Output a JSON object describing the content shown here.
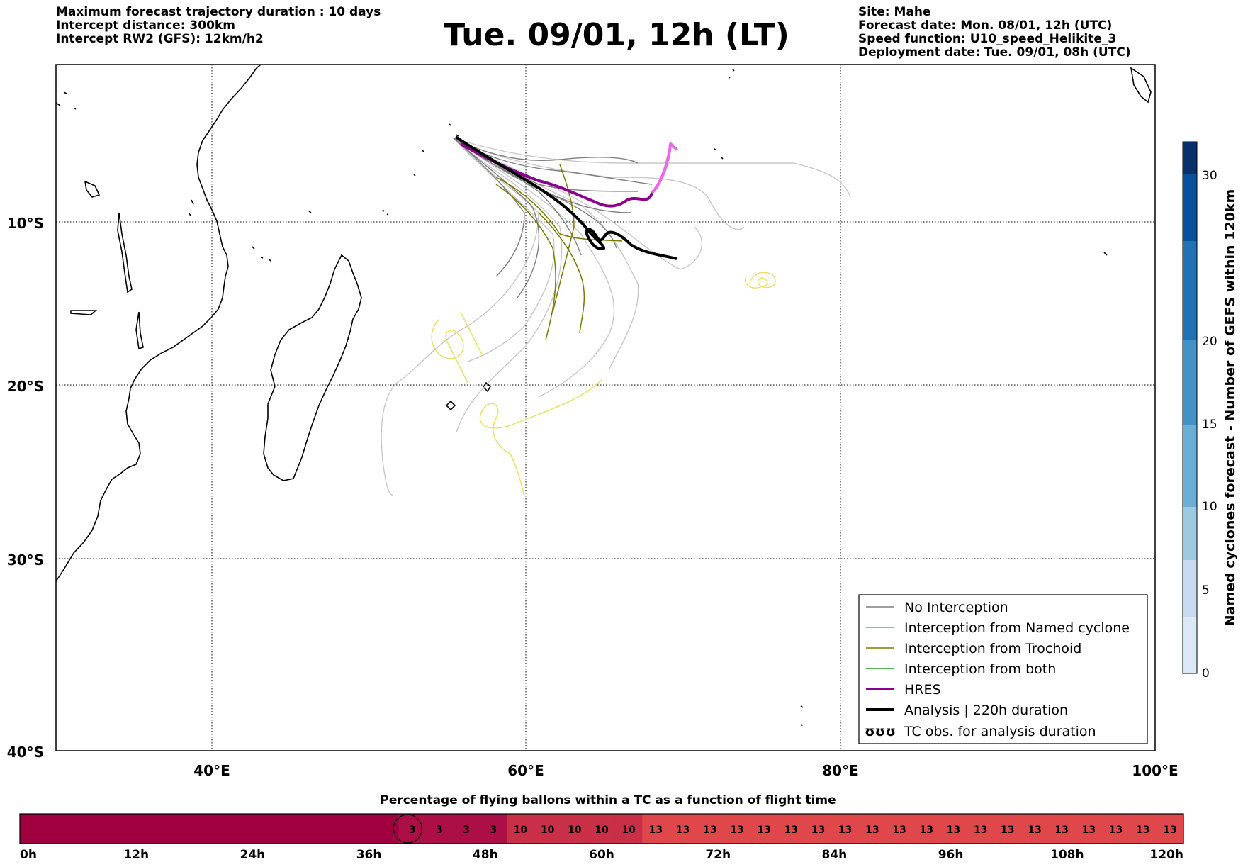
{
  "header": {
    "left_lines": [
      "Maximum forecast trajectory duration : 10 days",
      "Intercept distance: 300km",
      "Intercept RW2 (GFS):  12km/h2"
    ],
    "title": "Tue. 09/01, 12h (LT)",
    "right_lines": [
      "Site: Mahe",
      "Forecast date: Mon. 08/01, 12h (UTC)",
      "Speed function: U10_speed_Helikite_3",
      "Deployment date: Tue. 09/01, 08h (UTC)"
    ]
  },
  "map": {
    "lon_range": [
      30,
      100
    ],
    "lat_range": [
      -40,
      2
    ],
    "lat_labels": [
      "10°S",
      "20°S",
      "30°S",
      "40°S"
    ],
    "lon_labels": [
      "40°E",
      "60°E",
      "80°E",
      "100°E"
    ],
    "colors": {
      "no_interception": "#808080",
      "named_cyclone": "#ff6a1a",
      "trochoid": "#7a7a00",
      "both": "#1a9a1a",
      "hres": "#8b008b",
      "hres_late": "#ee66ee",
      "analysis": "#000000",
      "tc_obs": "#e8e060",
      "light_tracks": "#c8c8c8"
    }
  },
  "legend": {
    "items": [
      "No Interception",
      "Interception from Named cyclone",
      "Interception from Trochoid",
      "Interception from both",
      "HRES",
      "Analysis | 220h duration",
      "TC obs. for analysis duration"
    ],
    "tc_symbol": "ʊʊʊ"
  },
  "colorbar": {
    "label": "Named cyclones forecast - Number of GEFS within 120km",
    "ticks": [
      "0",
      "5",
      "10",
      "15",
      "20",
      "30"
    ],
    "colors": [
      "#dbe9f6",
      "#c6dbef",
      "#9ecae1",
      "#6baed6",
      "#4292c6",
      "#2171b5",
      "#08519c",
      "#08306b"
    ]
  },
  "timebar": {
    "title": "Percentage of flying ballons within a TC as a function of flight time",
    "tick_labels": [
      "0h",
      "12h",
      "24h",
      "36h",
      "48h",
      "60h",
      "72h",
      "84h",
      "96h",
      "108h",
      "120h"
    ],
    "segments": [
      {
        "hours": 3,
        "value": "",
        "color": "#a0003f"
      },
      {
        "hours": 3,
        "value": "",
        "color": "#a0003f"
      },
      {
        "hours": 3,
        "value": "",
        "color": "#a0003f"
      },
      {
        "hours": 3,
        "value": "",
        "color": "#a0003f"
      },
      {
        "hours": 3,
        "value": "",
        "color": "#a0003f"
      },
      {
        "hours": 3,
        "value": "",
        "color": "#a0003f"
      },
      {
        "hours": 3,
        "value": "",
        "color": "#a0003f"
      },
      {
        "hours": 3,
        "value": "",
        "color": "#a0003f"
      },
      {
        "hours": 3,
        "value": "",
        "color": "#a0003f"
      },
      {
        "hours": 3,
        "value": "",
        "color": "#a0003f"
      },
      {
        "hours": 3,
        "value": "",
        "color": "#a0003f"
      },
      {
        "hours": 3,
        "value": "",
        "color": "#a0003f"
      },
      {
        "hours": 3,
        "value": "",
        "color": "#a0003f"
      },
      {
        "hours": 3,
        "value": "",
        "color": "#a0003f"
      },
      {
        "hours": 3,
        "value": "3",
        "color": "#ac0f45"
      },
      {
        "hours": 3,
        "value": "3",
        "color": "#ac0f45"
      },
      {
        "hours": 3,
        "value": "3",
        "color": "#ac0f45"
      },
      {
        "hours": 3,
        "value": "3",
        "color": "#ac0f45"
      },
      {
        "hours": 3,
        "value": "10",
        "color": "#c92f47"
      },
      {
        "hours": 3,
        "value": "10",
        "color": "#c92f47"
      },
      {
        "hours": 3,
        "value": "10",
        "color": "#c92f47"
      },
      {
        "hours": 3,
        "value": "10",
        "color": "#c92f47"
      },
      {
        "hours": 3,
        "value": "10",
        "color": "#c92f47"
      },
      {
        "hours": 3,
        "value": "13",
        "color": "#e0474b"
      },
      {
        "hours": 3,
        "value": "13",
        "color": "#e0474b"
      },
      {
        "hours": 3,
        "value": "13",
        "color": "#e0474b"
      },
      {
        "hours": 3,
        "value": "13",
        "color": "#e0474b"
      },
      {
        "hours": 3,
        "value": "13",
        "color": "#e0474b"
      },
      {
        "hours": 3,
        "value": "13",
        "color": "#e0474b"
      },
      {
        "hours": 3,
        "value": "13",
        "color": "#e0474b"
      },
      {
        "hours": 3,
        "value": "13",
        "color": "#e0474b"
      },
      {
        "hours": 3,
        "value": "13",
        "color": "#e0474b"
      },
      {
        "hours": 3,
        "value": "13",
        "color": "#e0474b"
      },
      {
        "hours": 3,
        "value": "13",
        "color": "#e0474b"
      },
      {
        "hours": 3,
        "value": "13",
        "color": "#e0474b"
      },
      {
        "hours": 3,
        "value": "13",
        "color": "#e0474b"
      },
      {
        "hours": 3,
        "value": "13",
        "color": "#e0474b"
      },
      {
        "hours": 3,
        "value": "13",
        "color": "#e0474b"
      },
      {
        "hours": 3,
        "value": "13",
        "color": "#e0474b"
      },
      {
        "hours": 3,
        "value": "13",
        "color": "#e0474b"
      },
      {
        "hours": 3,
        "value": "13",
        "color": "#e0474b"
      },
      {
        "hours": 3,
        "value": "13",
        "color": "#e0474b"
      },
      {
        "hours": 3,
        "value": "13",
        "color": "#e0474b"
      }
    ],
    "current_time_hours": 43
  }
}
